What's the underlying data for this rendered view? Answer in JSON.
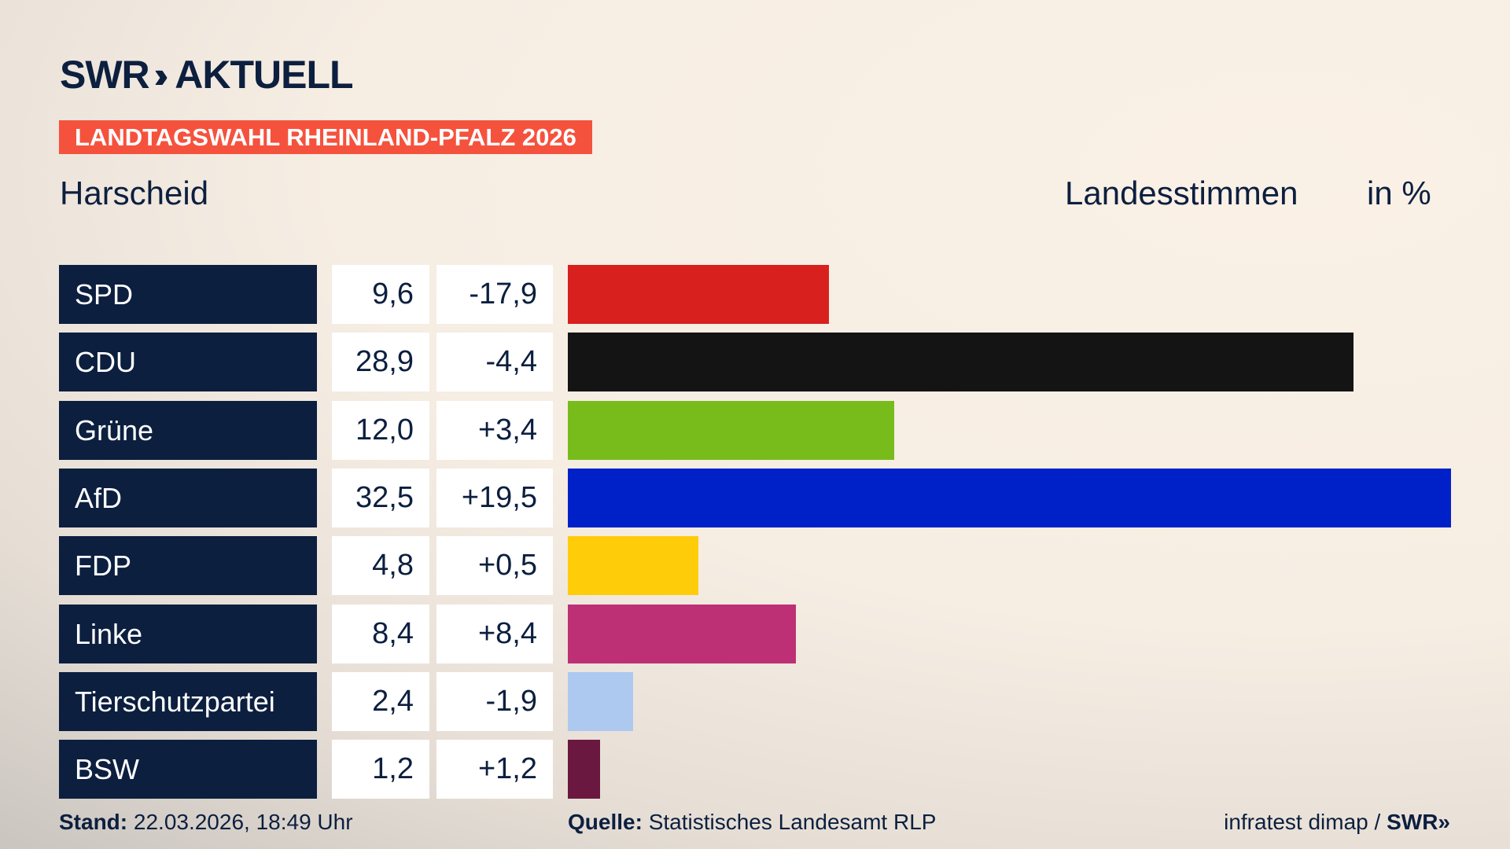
{
  "brand": {
    "logo_text": "SWR",
    "logo_suffix": "AKTUELL"
  },
  "banner": "LANDTAGSWAHL RHEINLAND-PFALZ 2026",
  "place": "Harscheid",
  "header": {
    "vote_type": "Landesstimmen",
    "unit": "in %"
  },
  "footer": {
    "stand_label": "Stand:",
    "stand_value": "22.03.2026, 18:49 Uhr",
    "source_label": "Quelle:",
    "source_value": "Statistisches Landesamt RLP",
    "credit": "infratest dimap /",
    "credit_brand": "SWR"
  },
  "chart_data": {
    "type": "bar",
    "orientation": "horizontal",
    "categories": [
      "SPD",
      "CDU",
      "Grüne",
      "AfD",
      "FDP",
      "Linke",
      "Tierschutzpartei",
      "BSW"
    ],
    "values": [
      9.6,
      28.9,
      12.0,
      32.5,
      4.8,
      8.4,
      2.4,
      1.2
    ],
    "value_labels": [
      "9,6",
      "28,9",
      "12,0",
      "32,5",
      "4,8",
      "8,4",
      "2,4",
      "1,2"
    ],
    "change_labels": [
      "-17,9",
      "-4,4",
      "+3,4",
      "+19,5",
      "+0,5",
      "+8,4",
      "-1,9",
      "+1,2"
    ],
    "changes": [
      -17.9,
      -4.4,
      3.4,
      19.5,
      0.5,
      8.4,
      -1.9,
      1.2
    ],
    "colors": [
      "#d8201f",
      "#141414",
      "#78bc1b",
      "#0021c8",
      "#ffcc0a",
      "#bd3075",
      "#adc9f0",
      "#6b1841"
    ],
    "xlim": [
      0,
      32.5
    ],
    "grid": false
  }
}
